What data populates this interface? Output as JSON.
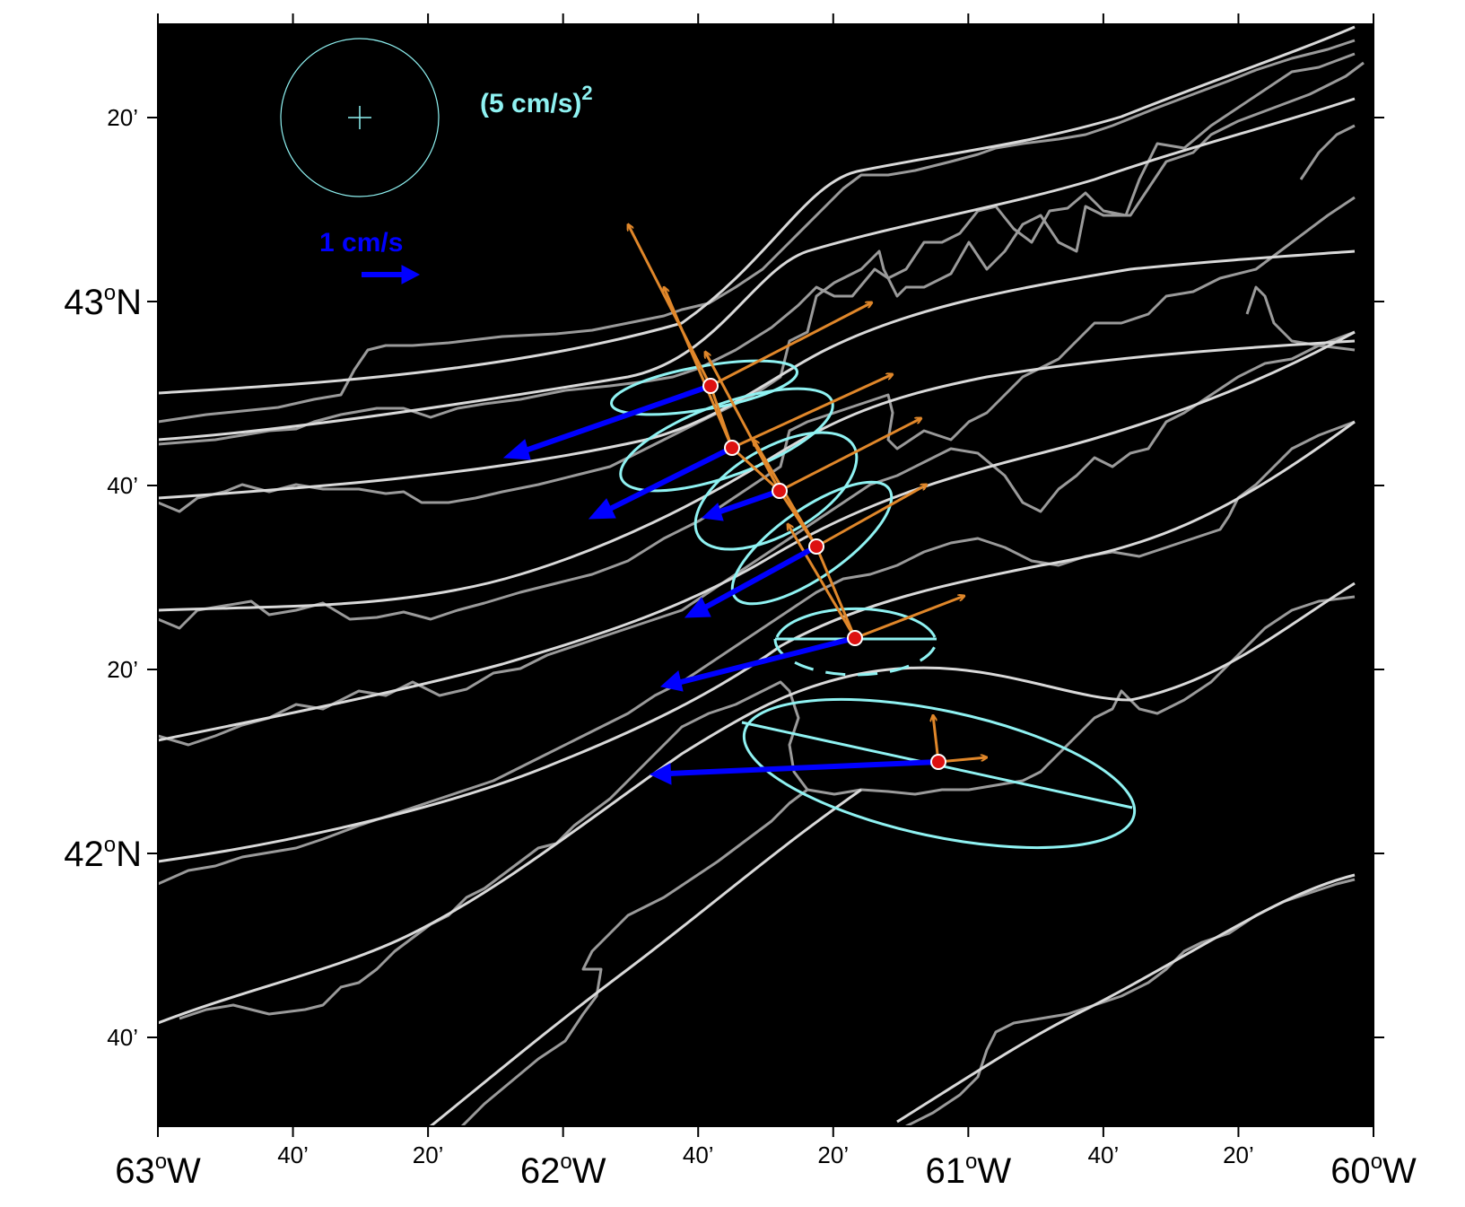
{
  "map": {
    "background": "#000000",
    "contour_color_smooth": "#d9d9d9",
    "contour_color_rough": "#9a9a9a",
    "ellipse_color": "#8ff2f2",
    "mean_arrow_color": "#0000ff",
    "principal_axis_color": "#e0872a",
    "mooring_color": "#dd1111",
    "lon_range": [
      -63.0,
      -60.0
    ],
    "lat_range": [
      41.5,
      43.33
    ]
  },
  "x_axis": {
    "ticks": [
      {
        "label": "63",
        "deg": true,
        "suffix": "W",
        "major": true
      },
      {
        "label": "40’",
        "major": false
      },
      {
        "label": "20’",
        "major": false
      },
      {
        "label": "62",
        "deg": true,
        "suffix": "W",
        "major": true
      },
      {
        "label": "40’",
        "major": false
      },
      {
        "label": "20’",
        "major": false
      },
      {
        "label": "61",
        "deg": true,
        "suffix": "W",
        "major": true
      },
      {
        "label": "40’",
        "major": false
      },
      {
        "label": "20’",
        "major": false
      },
      {
        "label": "60",
        "deg": true,
        "suffix": "W",
        "major": true
      }
    ]
  },
  "y_axis": {
    "ticks": [
      {
        "label": "20’",
        "major": false
      },
      {
        "label": "43",
        "deg": true,
        "suffix": "N",
        "major": true
      },
      {
        "label": "40’",
        "major": false
      },
      {
        "label": "20’",
        "major": false
      },
      {
        "label": "42",
        "deg": true,
        "suffix": "N",
        "major": true
      },
      {
        "label": "40’",
        "major": false
      }
    ]
  },
  "legend": {
    "variance_scale_label": "(5 cm/s)",
    "variance_scale_exponent": "2",
    "velocity_scale_label": "1 cm/s"
  },
  "moorings": [
    {
      "id": 1
    },
    {
      "id": 2
    },
    {
      "id": 3
    },
    {
      "id": 4
    },
    {
      "id": 5
    },
    {
      "id": 6
    }
  ]
}
